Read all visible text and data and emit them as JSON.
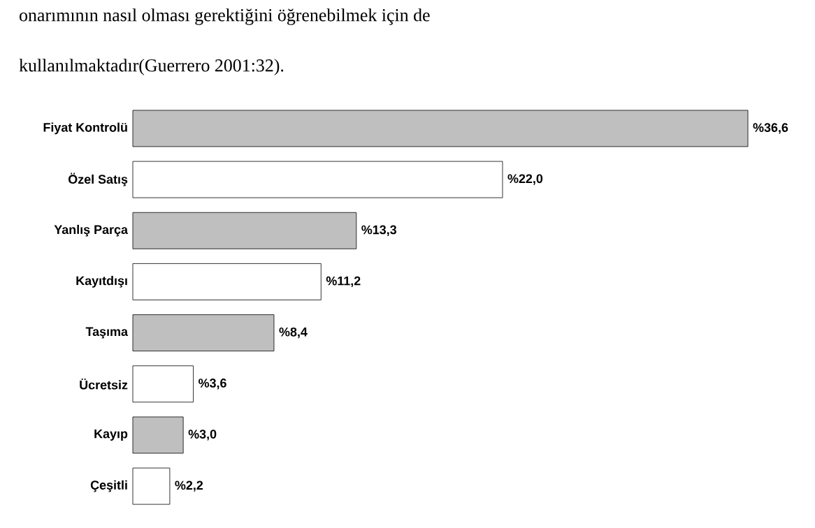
{
  "chart_data": {
    "type": "bar",
    "orientation": "horizontal",
    "annotations": [
      "onarımının nasıl olması gerektiğini öğrenebilmek için de",
      "kullanılmaktadır(Guerrero 2001:32)."
    ],
    "categories": [
      "Fiyat Kontrolü",
      "Özel Satış",
      "Yanlış Parça",
      "Kayıtdışı",
      "Taşıma",
      "Ücretsiz",
      "Kayıp",
      "Çeşitli"
    ],
    "values": [
      36.6,
      22.0,
      13.3,
      11.2,
      8.4,
      3.6,
      3.0,
      2.2
    ],
    "value_labels": [
      "%36,6",
      "%22,0",
      "%13,3",
      "%11,2",
      "%8,4",
      "%3,6",
      "%3,0",
      "%2,2"
    ],
    "colors": [
      "#bfbfbf",
      "#ffffff",
      "#bfbfbf",
      "#ffffff",
      "#bfbfbf",
      "#ffffff",
      "#bfbfbf",
      "#ffffff"
    ]
  }
}
